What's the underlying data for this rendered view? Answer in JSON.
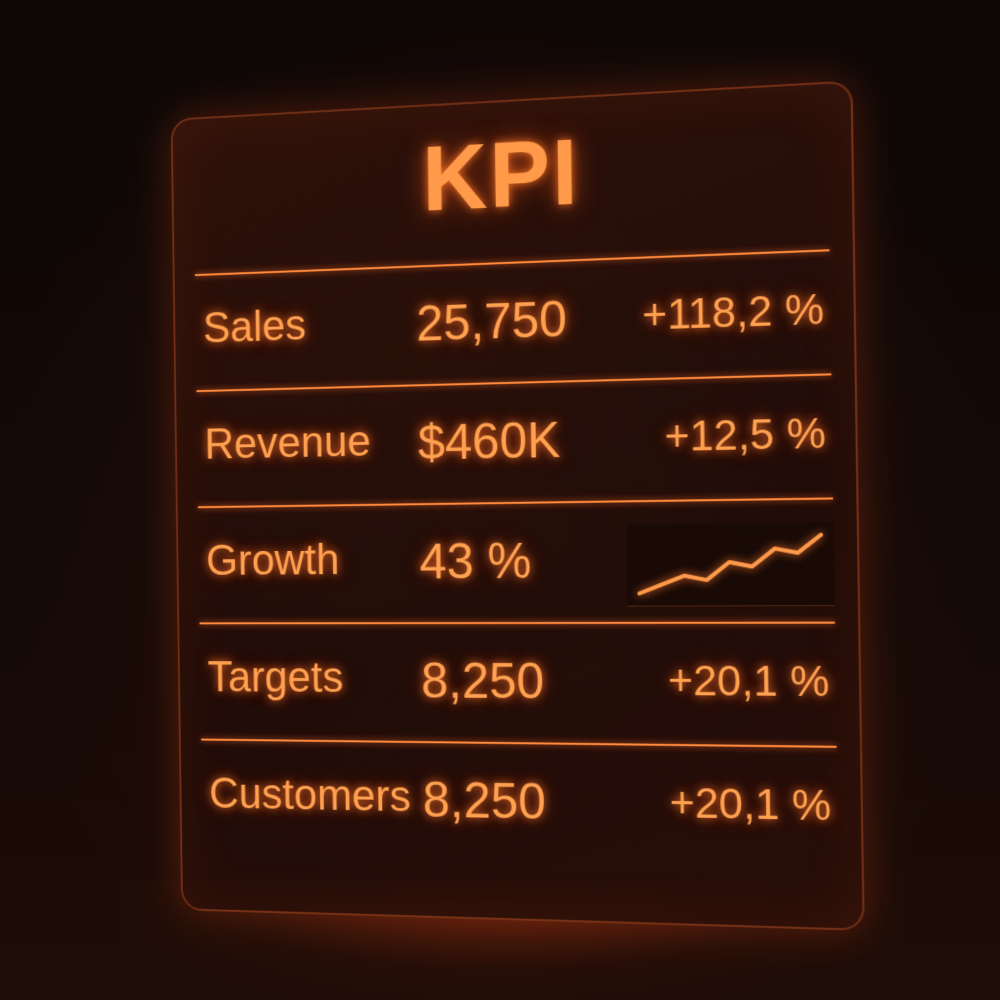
{
  "panel": {
    "title": "KPI"
  },
  "rows": [
    {
      "label": "Sales",
      "value": "25,750",
      "change": "+118,2 %"
    },
    {
      "label": "Revenue",
      "value": "$460K",
      "change": "+12,5 %"
    },
    {
      "label": "Growth",
      "value": "43 %",
      "sparkline": [
        2,
        4,
        6,
        5,
        9,
        8,
        12,
        11,
        15
      ]
    },
    {
      "label": "Targets",
      "value": "8,250",
      "change": "+20,1 %"
    },
    {
      "label": "Customers",
      "value": "8,250",
      "change": "+20,1 %"
    }
  ],
  "colors": {
    "accent": "#ff9a4a",
    "rule": "#ff8a3c",
    "background": "#0b0605"
  }
}
